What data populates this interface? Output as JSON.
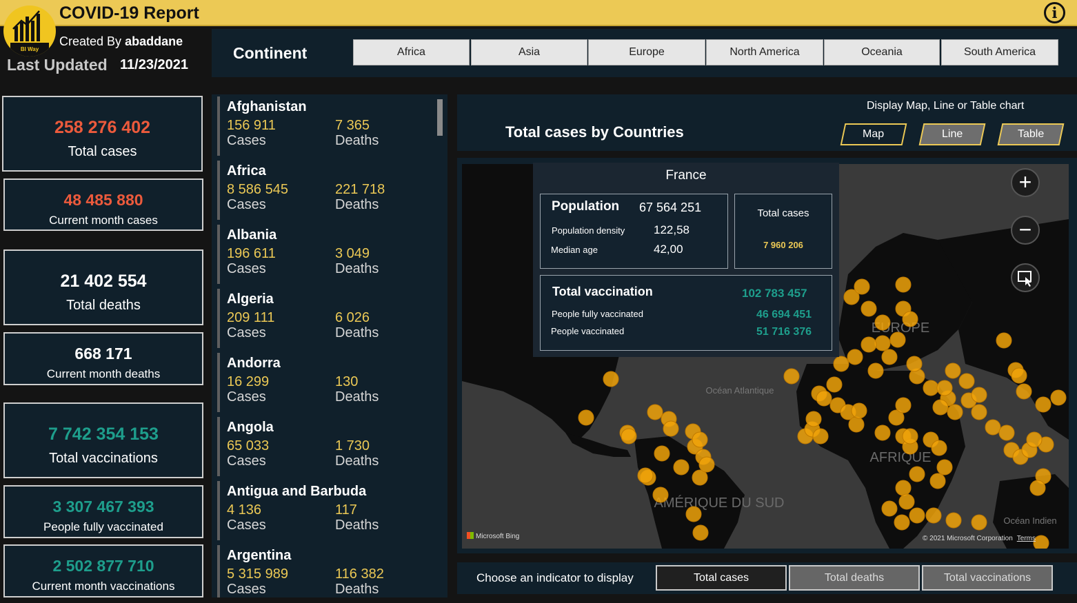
{
  "app": {
    "title": "COVID-19 Report",
    "logo_text": "BI Way",
    "created_label": "Created By",
    "created_by": "abaddane",
    "last_updated_label": "Last Updated",
    "last_updated": "11/23/2021"
  },
  "continent": {
    "label": "Continent",
    "options": [
      "Africa",
      "Asia",
      "Europe",
      "North America",
      "Oceania",
      "South America"
    ]
  },
  "stats": [
    {
      "value": "258 276 402",
      "label": "Total cases",
      "color": "#ec5a3c"
    },
    {
      "value": "48 485 880",
      "label": "Current month cases",
      "color": "#ec5a3c"
    },
    {
      "value": "21 402 554",
      "label": "Total deaths",
      "color": "#ffffff"
    },
    {
      "value": "668 171",
      "label": "Current month deaths",
      "color": "#ffffff"
    },
    {
      "value": "7 742 354 153",
      "label": "Total vaccinations",
      "color": "#1e9e8c"
    },
    {
      "value": "3 307 467 393",
      "label": "People fully vaccinated",
      "color": "#1e9e8c"
    },
    {
      "value": "2 502 877 710",
      "label": "Current month vaccinations",
      "color": "#1e9e8c"
    }
  ],
  "countries": [
    {
      "name": "Afghanistan",
      "cases": "156 911",
      "deaths": "7 365",
      "cases_label": "Cases",
      "deaths_label": "Deaths"
    },
    {
      "name": "Africa",
      "cases": "8 586 545",
      "deaths": "221 718",
      "cases_label": "Cases",
      "deaths_label": "Deaths"
    },
    {
      "name": "Albania",
      "cases": "196 611",
      "deaths": "3 049",
      "cases_label": "Cases",
      "deaths_label": "Deaths"
    },
    {
      "name": "Algeria",
      "cases": "209 111",
      "deaths": "6 026",
      "cases_label": "Cases",
      "deaths_label": "Deaths"
    },
    {
      "name": "Andorra",
      "cases": "16 299",
      "deaths": "130",
      "cases_label": "Cases",
      "deaths_label": "Deaths"
    },
    {
      "name": "Angola",
      "cases": "65 033",
      "deaths": "1 730",
      "cases_label": "Cases",
      "deaths_label": "Deaths"
    },
    {
      "name": "Antigua and Barbuda",
      "cases": "4 136",
      "deaths": "117",
      "cases_label": "Cases",
      "deaths_label": "Deaths"
    },
    {
      "name": "Argentina",
      "cases": "5 315 989",
      "deaths": "116 382",
      "cases_label": "Cases",
      "deaths_label": "Deaths"
    }
  ],
  "chart_header": {
    "note": "Display Map, Line or Table chart",
    "title": "Total cases by Countries",
    "buttons": [
      "Map",
      "Line",
      "Table"
    ]
  },
  "tooltip": {
    "country": "France",
    "population_label": "Population",
    "population": "67 564 251",
    "density_label": "Population density",
    "density": "122,58",
    "median_age_label": "Median age",
    "median_age": "42,00",
    "total_cases_label": "Total cases",
    "total_cases": "7 960 206",
    "vaccination_label": "Total vaccination",
    "vaccination": "102 783 457",
    "fully_label": "People fully vaccinated",
    "fully": "46 694 451",
    "vaccinated_label": "People vaccinated",
    "vaccinated": "51 716 376"
  },
  "map": {
    "labels": {
      "europe": "EUROPE",
      "afrique": "AFRIQUE",
      "amerique": "AMÉRIQUE DU SUD",
      "atlantique": "Océan Atlantique",
      "indien": "Océan Indien"
    },
    "bing": "Microsoft Bing",
    "copyright": "© 2021 Microsoft Corporation",
    "terms": "Terms",
    "marker_color": "#f0a30a"
  },
  "indicator": {
    "label": "Choose an indicator to display",
    "buttons": [
      "Total cases",
      "Total deaths",
      "Total vaccinations"
    ]
  }
}
